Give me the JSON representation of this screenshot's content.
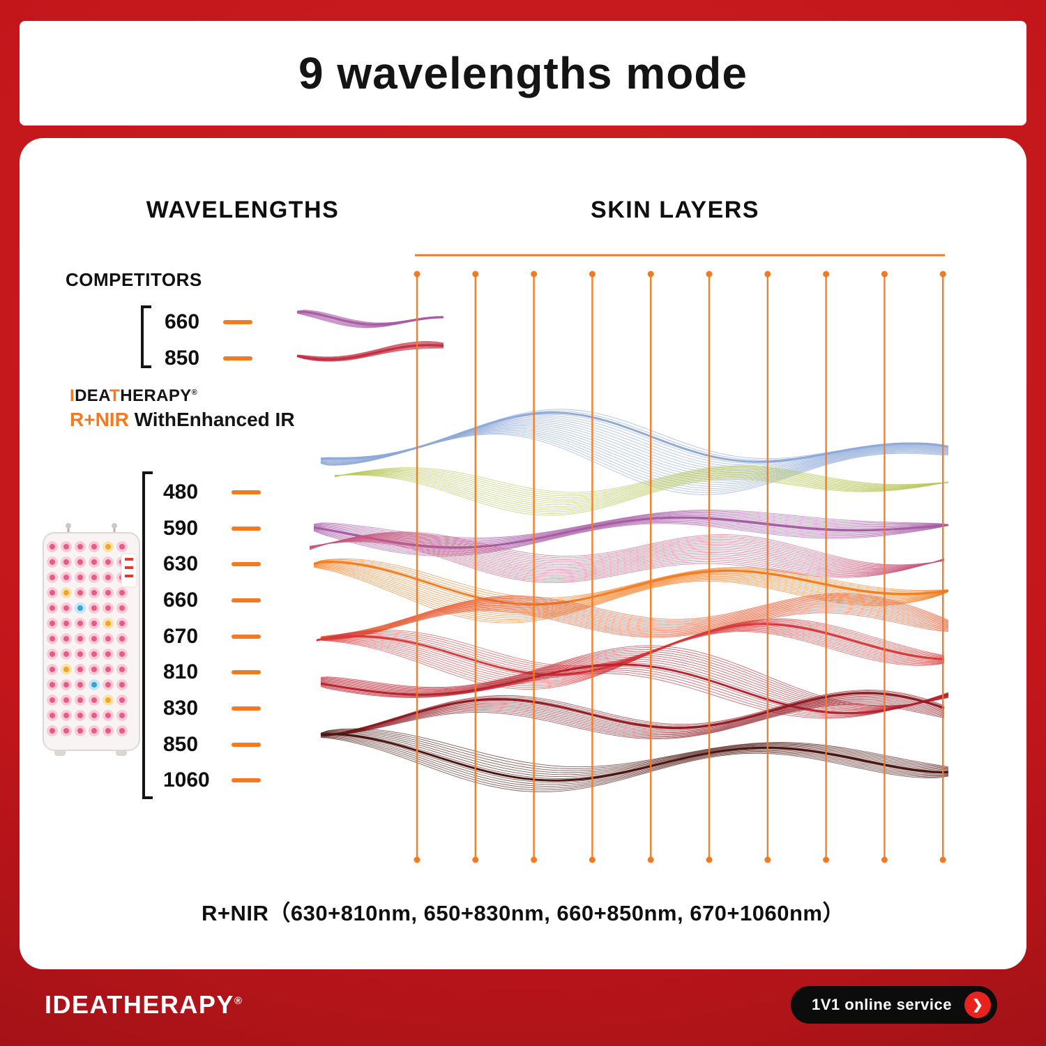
{
  "header": {
    "title": "9 wavelengths mode"
  },
  "card": {
    "left_heading": "WAVELENGTHS",
    "right_heading": "SKIN LAYERS",
    "competitors": {
      "label": "COMPETITORS",
      "wavelengths": [
        "660",
        "850"
      ]
    },
    "brand": {
      "parts": [
        {
          "text": "I",
          "orange": true
        },
        {
          "text": "DEA",
          "orange": false
        },
        {
          "text": "T",
          "orange": true
        },
        {
          "text": "HERAPY",
          "orange": false
        }
      ],
      "reg": "®",
      "product_prefix": "R+NIR",
      "product_rest": " WithEnhanced IR"
    },
    "wavelengths": [
      "480",
      "590",
      "630",
      "660",
      "670",
      "810",
      "830",
      "850",
      "1060"
    ],
    "footnote": "R+NIR（630+810nm,  650+830nm,  660+850nm,  670+1060nm）"
  },
  "chart": {
    "columns": 10,
    "competitor_wave_colors": [
      "#A85CA6",
      "#C22F42"
    ],
    "wave_colors": [
      "#8FA9D9",
      "#B9C75B",
      "#A75BA5",
      "#C9577B",
      "#F07E22",
      "#E2562C",
      "#D63A3C",
      "#B8232F",
      "#8E1A22",
      "#4A1510"
    ]
  },
  "footer": {
    "brand": "IDEATHERAPY",
    "reg": "®",
    "service_label": "1V1 online service",
    "arrow_glyph": "❯"
  },
  "colors": {
    "accent": "#F4791F",
    "background": "#C0151A",
    "pill_bg": "#0C0C0C",
    "text_dark": "#141414",
    "led_pink_outer": "#F9CBD8",
    "led_pink_inner": "#E75A8C",
    "led_yellow_outer": "#FBE3AE",
    "led_yellow_inner": "#F2A52B",
    "led_blue_outer": "#C5E6F4",
    "led_blue_inner": "#39A3D6"
  }
}
